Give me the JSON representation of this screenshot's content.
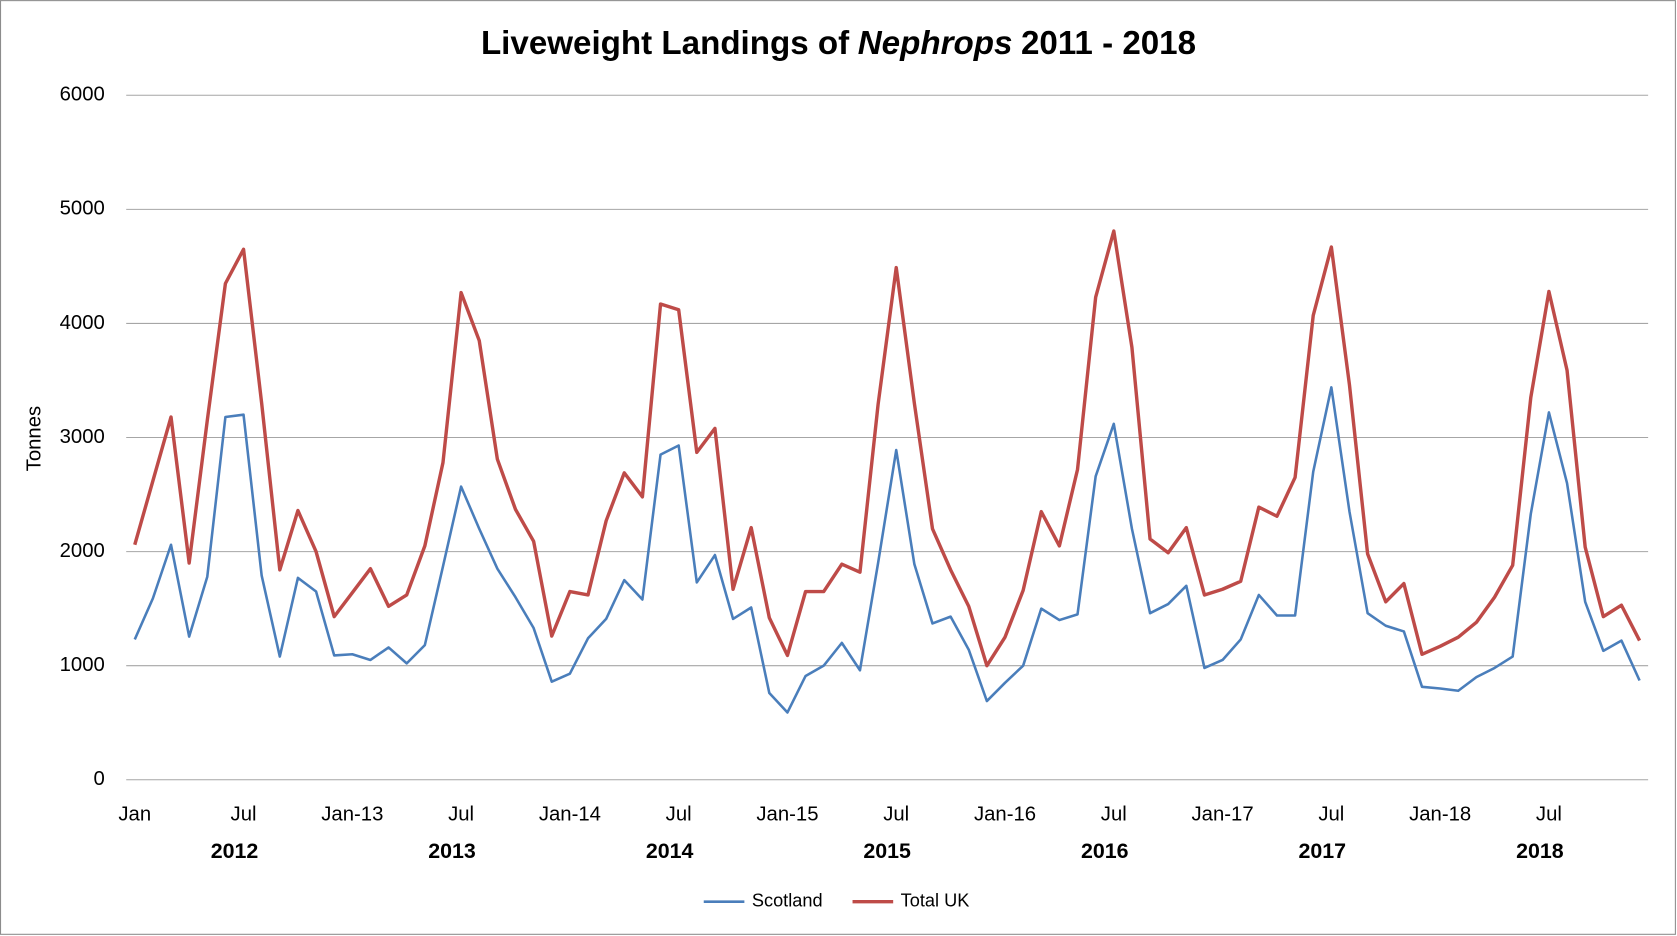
{
  "chart_data": {
    "type": "line",
    "title": [
      "Liveweight Landings of",
      "Nephrops",
      "2011 - 2018"
    ],
    "ylabel": "Tonnes",
    "categories": [
      "Jan",
      null,
      null,
      null,
      null,
      null,
      "Jul",
      null,
      null,
      null,
      null,
      null,
      "Jan-13",
      null,
      null,
      null,
      null,
      null,
      "Jul",
      null,
      null,
      null,
      null,
      null,
      "Jan-14",
      null,
      null,
      null,
      null,
      null,
      "Jul",
      null,
      null,
      null,
      null,
      null,
      "Jan-15",
      null,
      null,
      null,
      null,
      null,
      "Jul",
      null,
      null,
      null,
      null,
      null,
      "Jan-16",
      null,
      null,
      null,
      null,
      null,
      "Jul",
      null,
      null,
      null,
      null,
      null,
      "Jan-17",
      null,
      null,
      null,
      null,
      null,
      "Jul",
      null,
      null,
      null,
      null,
      null,
      "Jan-18",
      null,
      null,
      null,
      null,
      null,
      "Jul",
      null,
      null,
      null,
      null,
      null
    ],
    "groups": [
      "2012",
      "2013",
      "2014",
      "2015",
      "2016",
      "2017",
      "2018"
    ],
    "ylim": [
      0,
      6000
    ],
    "yticks": [
      0,
      1000,
      2000,
      3000,
      4000,
      5000,
      6000
    ],
    "grid": true,
    "legend": "bottom",
    "series": [
      {
        "name": "Scotland",
        "color": "#4a7ebb",
        "values": [
          1230,
          1590,
          2060,
          1255,
          1780,
          3180,
          3200,
          1790,
          1080,
          1770,
          1650,
          1090,
          1100,
          1050,
          1160,
          1020,
          1180,
          1870,
          2570,
          2200,
          1850,
          1600,
          1330,
          860,
          930,
          1240,
          1410,
          1750,
          1580,
          2850,
          2930,
          1730,
          1970,
          1410,
          1510,
          760,
          590,
          910,
          1000,
          1200,
          960,
          1900,
          2890,
          1890,
          1370,
          1430,
          1140,
          690,
          850,
          1000,
          1500,
          1400,
          1450,
          2660,
          3120,
          2200,
          1460,
          1540,
          1700,
          980,
          1050,
          1230,
          1620,
          1440,
          1440,
          2700,
          3440,
          2350,
          1460,
          1350,
          1300,
          815,
          800,
          780,
          900,
          980,
          1080,
          2330,
          3220,
          2600,
          1560,
          1130,
          1220,
          870
        ]
      },
      {
        "name": "Total UK",
        "color": "#be4b48",
        "values": [
          2060,
          2620,
          3180,
          1900,
          3150,
          4350,
          4650,
          3300,
          1840,
          2360,
          2000,
          1430,
          1640,
          1850,
          1520,
          1620,
          2050,
          2780,
          4270,
          3850,
          2810,
          2370,
          2090,
          1260,
          1650,
          1620,
          2270,
          2690,
          2480,
          4170,
          4120,
          2870,
          3080,
          1670,
          2210,
          1420,
          1090,
          1650,
          1650,
          1890,
          1820,
          3290,
          4490,
          3300,
          2200,
          1840,
          1520,
          1000,
          1250,
          1660,
          2350,
          2050,
          2720,
          4230,
          4810,
          3790,
          2110,
          1990,
          2210,
          1620,
          1670,
          1740,
          2390,
          2310,
          2650,
          4070,
          4670,
          3460,
          1980,
          1560,
          1720,
          1100,
          1170,
          1250,
          1380,
          1600,
          1880,
          3350,
          4280,
          3590,
          2040,
          1430,
          1530,
          1220
        ]
      }
    ]
  }
}
